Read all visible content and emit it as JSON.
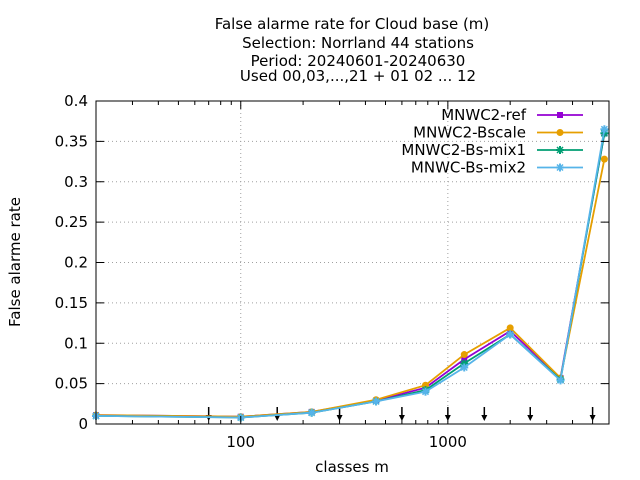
{
  "chart_data": {
    "type": "line",
    "title_lines": [
      "False alarme rate  for Cloud base (m)",
      "Selection: Norrland     44 stations",
      "Period: 20240601-20240630",
      "Used 00,03,...,21 + 01 02 ... 12"
    ],
    "xlabel": "classes m",
    "ylabel": "False alarme rate",
    "x_scale": "log",
    "xlim": [
      20,
      6000
    ],
    "ylim": [
      0,
      0.4
    ],
    "x_ticks": [
      100,
      1000
    ],
    "x_tick_labels": [
      "100",
      "1000"
    ],
    "y_ticks": [
      0,
      0.05,
      0.1,
      0.15,
      0.2,
      0.25,
      0.3,
      0.35,
      0.4
    ],
    "y_tick_labels": [
      "0",
      "0.05",
      "0.1",
      "0.15",
      "0.2",
      "0.25",
      "0.3",
      "0.35",
      "0.4"
    ],
    "grid": true,
    "legend_position": "top-right",
    "class_markers_x": [
      70,
      150,
      300,
      600,
      1000,
      1500,
      2500,
      5000
    ],
    "x": [
      20,
      100,
      220,
      450,
      780,
      1200,
      2000,
      3500,
      5700
    ],
    "series": [
      {
        "name": "MNWC2-ref",
        "color": "#9400d3",
        "marker": "square",
        "values": [
          0.011,
          0.009,
          0.015,
          0.029,
          0.045,
          0.08,
          0.115,
          0.057,
          0.36
        ]
      },
      {
        "name": "MNWC2-Bscale",
        "color": "#e69f00",
        "marker": "circle",
        "values": [
          0.011,
          0.009,
          0.015,
          0.03,
          0.048,
          0.086,
          0.119,
          0.057,
          0.328
        ]
      },
      {
        "name": "MNWC2-Bs-mix1",
        "color": "#009e73",
        "marker": "star",
        "values": [
          0.01,
          0.008,
          0.014,
          0.028,
          0.042,
          0.075,
          0.111,
          0.055,
          0.36
        ]
      },
      {
        "name": "MNWC-Bs-mix2",
        "color": "#56b4e9",
        "marker": "star",
        "values": [
          0.01,
          0.008,
          0.014,
          0.028,
          0.04,
          0.07,
          0.111,
          0.054,
          0.365
        ]
      }
    ]
  }
}
